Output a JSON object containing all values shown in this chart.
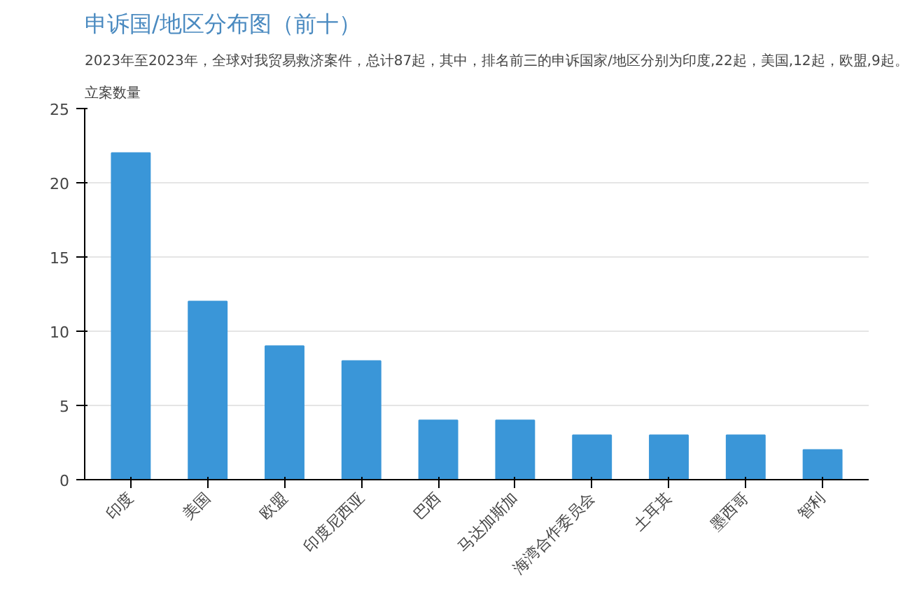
{
  "chart_data": {
    "type": "bar",
    "title": "申诉国/地区分布图（前十）",
    "subtitle": "2023年至2023年，全球对我贸易救济案件，总计87起，其中，排名前三的申诉国家/地区分别为印度,22起，美国,12起，欧盟,9起。",
    "ylabel": "立案数量",
    "categories": [
      "印度",
      "美国",
      "欧盟",
      "印度尼西亚",
      "巴西",
      "马达加斯加",
      "海湾合作委员会",
      "土耳其",
      "墨西哥",
      "智利"
    ],
    "values": [
      22,
      12,
      9,
      8,
      4,
      4,
      3,
      3,
      3,
      2
    ],
    "color": "#3a96d8",
    "ylim": [
      0,
      25
    ],
    "yticks": [
      0,
      5,
      10,
      15,
      20,
      25
    ],
    "grid": "y"
  }
}
